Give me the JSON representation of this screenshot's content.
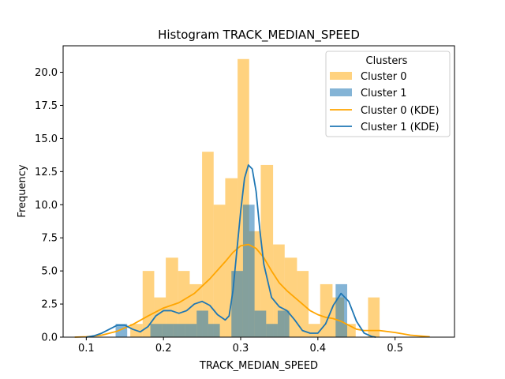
{
  "chart_data": {
    "type": "bar",
    "title": "Histogram TRACK_MEDIAN_SPEED",
    "xlabel": "TRACK_MEDIAN_SPEED",
    "ylabel": "Frequency",
    "xlim": [
      0.07,
      0.577
    ],
    "ylim": [
      0,
      22.0
    ],
    "x_ticks": [
      0.1,
      0.2,
      0.3,
      0.4,
      0.5
    ],
    "x_tick_labels": [
      "0.1",
      "0.2",
      "0.3",
      "0.4",
      "0.5"
    ],
    "y_ticks": [
      0.0,
      2.5,
      5.0,
      7.5,
      10.0,
      12.5,
      15.0,
      17.5,
      20.0
    ],
    "y_tick_labels": [
      "0.0",
      "2.5",
      "5.0",
      "7.5",
      "10.0",
      "12.5",
      "15.0",
      "17.5",
      "20.0"
    ],
    "grid": false,
    "legend": {
      "title": "Clusters",
      "position": "top-right",
      "entries": [
        "Cluster 0",
        "Cluster 1",
        "Cluster 0 (KDE)",
        "Cluster 1 (KDE)"
      ]
    },
    "histograms": [
      {
        "name": "Cluster 0",
        "color": "#ffa500",
        "opacity": 0.5,
        "bins": [
          {
            "x0": 0.157,
            "x1": 0.173,
            "count": 1
          },
          {
            "x0": 0.173,
            "x1": 0.188,
            "count": 5
          },
          {
            "x0": 0.188,
            "x1": 0.203,
            "count": 3
          },
          {
            "x0": 0.203,
            "x1": 0.219,
            "count": 6
          },
          {
            "x0": 0.219,
            "x1": 0.234,
            "count": 5
          },
          {
            "x0": 0.234,
            "x1": 0.25,
            "count": 4
          },
          {
            "x0": 0.25,
            "x1": 0.265,
            "count": 14
          },
          {
            "x0": 0.265,
            "x1": 0.28,
            "count": 10
          },
          {
            "x0": 0.28,
            "x1": 0.296,
            "count": 12
          },
          {
            "x0": 0.296,
            "x1": 0.311,
            "count": 21
          },
          {
            "x0": 0.311,
            "x1": 0.326,
            "count": 8
          },
          {
            "x0": 0.326,
            "x1": 0.342,
            "count": 13
          },
          {
            "x0": 0.342,
            "x1": 0.357,
            "count": 7
          },
          {
            "x0": 0.357,
            "x1": 0.373,
            "count": 6
          },
          {
            "x0": 0.373,
            "x1": 0.388,
            "count": 5
          },
          {
            "x0": 0.388,
            "x1": 0.403,
            "count": 1
          },
          {
            "x0": 0.403,
            "x1": 0.419,
            "count": 4
          },
          {
            "x0": 0.419,
            "x1": 0.434,
            "count": 3
          },
          {
            "x0": 0.434,
            "x1": 0.449,
            "count": 1
          },
          {
            "x0": 0.449,
            "x1": 0.465,
            "count": 0
          },
          {
            "x0": 0.465,
            "x1": 0.48,
            "count": 3
          }
        ]
      },
      {
        "name": "Cluster 1",
        "color": "#1f77b4",
        "opacity": 0.55,
        "bins": [
          {
            "x0": 0.138,
            "x1": 0.153,
            "count": 1
          },
          {
            "x0": 0.153,
            "x1": 0.168,
            "count": 0
          },
          {
            "x0": 0.168,
            "x1": 0.183,
            "count": 0
          },
          {
            "x0": 0.183,
            "x1": 0.198,
            "count": 1
          },
          {
            "x0": 0.198,
            "x1": 0.213,
            "count": 1
          },
          {
            "x0": 0.213,
            "x1": 0.228,
            "count": 1
          },
          {
            "x0": 0.228,
            "x1": 0.243,
            "count": 1
          },
          {
            "x0": 0.243,
            "x1": 0.258,
            "count": 2
          },
          {
            "x0": 0.258,
            "x1": 0.273,
            "count": 1
          },
          {
            "x0": 0.273,
            "x1": 0.288,
            "count": 0
          },
          {
            "x0": 0.288,
            "x1": 0.303,
            "count": 5
          },
          {
            "x0": 0.303,
            "x1": 0.318,
            "count": 10
          },
          {
            "x0": 0.318,
            "x1": 0.333,
            "count": 2
          },
          {
            "x0": 0.333,
            "x1": 0.348,
            "count": 1
          },
          {
            "x0": 0.348,
            "x1": 0.363,
            "count": 2
          },
          {
            "x0": 0.363,
            "x1": 0.378,
            "count": 0
          },
          {
            "x0": 0.378,
            "x1": 0.393,
            "count": 0
          },
          {
            "x0": 0.393,
            "x1": 0.408,
            "count": 0
          },
          {
            "x0": 0.408,
            "x1": 0.423,
            "count": 0
          },
          {
            "x0": 0.423,
            "x1": 0.438,
            "count": 4
          }
        ]
      }
    ],
    "series": [
      {
        "name": "Cluster 0 (KDE)",
        "color": "#ffa500",
        "x": [
          0.085,
          0.1,
          0.12,
          0.14,
          0.16,
          0.18,
          0.2,
          0.22,
          0.24,
          0.26,
          0.28,
          0.29,
          0.3,
          0.31,
          0.32,
          0.33,
          0.34,
          0.35,
          0.36,
          0.37,
          0.38,
          0.39,
          0.4,
          0.41,
          0.42,
          0.43,
          0.44,
          0.45,
          0.46,
          0.48,
          0.5,
          0.52,
          0.545
        ],
        "y": [
          0.0,
          0.03,
          0.15,
          0.45,
          0.95,
          1.6,
          2.2,
          2.6,
          3.3,
          4.4,
          5.7,
          6.4,
          6.9,
          7.0,
          6.7,
          6.0,
          5.0,
          4.1,
          3.5,
          3.0,
          2.5,
          2.0,
          1.7,
          1.5,
          1.4,
          1.2,
          0.9,
          0.6,
          0.5,
          0.5,
          0.35,
          0.15,
          0.03
        ]
      },
      {
        "name": "Cluster 1 (KDE)",
        "color": "#1f77b4",
        "x": [
          0.1,
          0.11,
          0.12,
          0.13,
          0.14,
          0.15,
          0.16,
          0.17,
          0.18,
          0.19,
          0.2,
          0.21,
          0.22,
          0.23,
          0.24,
          0.25,
          0.26,
          0.27,
          0.28,
          0.285,
          0.29,
          0.295,
          0.3,
          0.305,
          0.31,
          0.315,
          0.32,
          0.325,
          0.33,
          0.34,
          0.35,
          0.36,
          0.37,
          0.38,
          0.39,
          0.4,
          0.41,
          0.42,
          0.43,
          0.44,
          0.45,
          0.46,
          0.47,
          0.475
        ],
        "y": [
          0.0,
          0.1,
          0.3,
          0.6,
          0.9,
          0.9,
          0.6,
          0.4,
          0.8,
          1.6,
          2.0,
          2.0,
          1.8,
          2.0,
          2.5,
          2.7,
          2.4,
          1.7,
          1.3,
          1.6,
          3.5,
          6.5,
          9.5,
          12.0,
          13.0,
          12.7,
          11.0,
          8.0,
          5.5,
          3.0,
          2.3,
          2.0,
          1.3,
          0.5,
          0.3,
          0.3,
          1.0,
          2.4,
          3.3,
          2.7,
          1.2,
          0.3,
          0.05,
          0.0
        ]
      }
    ]
  }
}
